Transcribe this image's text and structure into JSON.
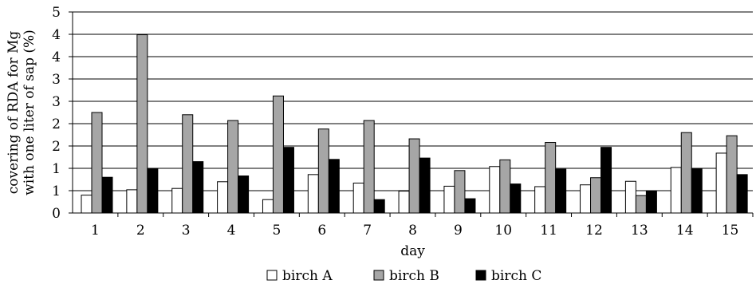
{
  "chart_data": {
    "type": "bar",
    "title": "",
    "xlabel": "day",
    "ylabel_lines": [
      "covering of RDA for Mg",
      "with one liter of sap (%)"
    ],
    "ytick_labels": [
      "0",
      "1",
      "1",
      "2",
      "2",
      "3",
      "3",
      "4",
      "4",
      "5"
    ],
    "ylim": [
      0,
      4.5
    ],
    "grid": "horizontal",
    "legend_position": "bottom",
    "categories": [
      "1",
      "2",
      "3",
      "4",
      "5",
      "6",
      "7",
      "8",
      "9",
      "10",
      "11",
      "12",
      "13",
      "14",
      "15"
    ],
    "series": [
      {
        "name": "birch A",
        "color": "#ffffff",
        "values": [
          0.4,
          0.52,
          0.55,
          0.7,
          0.3,
          0.86,
          0.67,
          0.49,
          0.6,
          1.04,
          0.59,
          0.63,
          0.71,
          1.02,
          1.34
        ]
      },
      {
        "name": "birch B",
        "color": "#a6a6a6",
        "values": [
          2.25,
          3.99,
          2.2,
          2.07,
          2.62,
          1.88,
          2.07,
          1.66,
          0.95,
          1.19,
          1.58,
          0.79,
          0.39,
          1.8,
          1.73
        ]
      },
      {
        "name": "birch C",
        "color": "#000000",
        "values": [
          0.8,
          1.0,
          1.15,
          0.83,
          1.47,
          1.2,
          0.3,
          1.23,
          0.32,
          0.65,
          0.98,
          1.47,
          0.5,
          1.0,
          0.86
        ]
      }
    ]
  }
}
